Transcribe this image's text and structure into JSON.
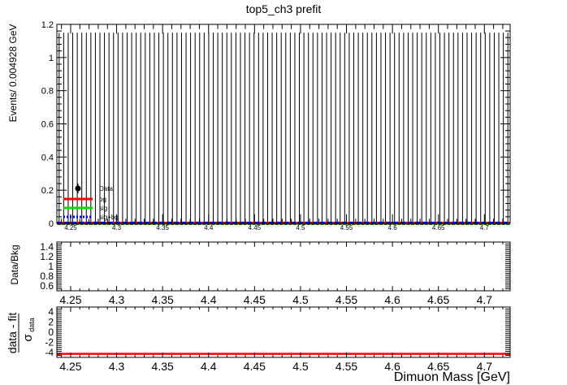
{
  "title": "top5_ch3   prefit",
  "x_axis_label": "Dimuon Mass [GeV]",
  "colors": {
    "bg": "#ff0000",
    "sig": "#00dd00",
    "data": "#000000",
    "sig_bg": "#0000ff",
    "fit_line": "#ff0000"
  },
  "chart_data": [
    {
      "type": "line",
      "title": "top5_ch3   prefit",
      "ylabel": "Events/ 0.004928 GeV",
      "xlabel": "",
      "xlim": [
        4.235,
        4.728
      ],
      "ylim": [
        0,
        1.2
      ],
      "x_ticks": [
        4.25,
        4.3,
        4.35,
        4.4,
        4.45,
        4.5,
        4.55,
        4.6,
        4.65,
        4.7
      ],
      "y_ticks": [
        0,
        0.2,
        0.4,
        0.6,
        0.8,
        1,
        1.2
      ],
      "series": [
        {
          "name": "Data",
          "style": "points",
          "bins": 100,
          "values_note": "all bins 0, error bars to 1.15",
          "values": [
            0
          ]
        },
        {
          "name": "bg",
          "style": "line",
          "values": [
            0.002
          ]
        },
        {
          "name": "sig",
          "style": "line",
          "values": [
            0
          ]
        },
        {
          "name": "sig+bg",
          "style": "dashed",
          "values": [
            0.003
          ]
        }
      ],
      "legend": "bottom-left",
      "grid": false
    },
    {
      "type": "line",
      "ylabel": "Data/Bkg",
      "xlim": [
        4.235,
        4.728
      ],
      "ylim": [
        0.5,
        1.5
      ],
      "y_ticks": [
        0.6,
        0.8,
        1,
        1.2,
        1.4
      ],
      "x_ticks": [
        4.25,
        4.3,
        4.35,
        4.4,
        4.45,
        4.5,
        4.55,
        4.6,
        4.65,
        4.7
      ],
      "series": []
    },
    {
      "type": "line",
      "ylabel_num": "data - fit",
      "ylabel_den": "σ",
      "ylabel_den_sub": "data",
      "xlabel": "Dimuon Mass [GeV]",
      "xlim": [
        4.235,
        4.728
      ],
      "ylim": [
        -5,
        5
      ],
      "y_ticks": [
        -4,
        -2,
        0,
        2,
        4
      ],
      "x_ticks": [
        4.25,
        4.3,
        4.35,
        4.4,
        4.45,
        4.5,
        4.55,
        4.6,
        4.65,
        4.7
      ],
      "series": [
        {
          "name": "",
          "style": "line",
          "values": [
            -4.3
          ]
        }
      ]
    }
  ]
}
